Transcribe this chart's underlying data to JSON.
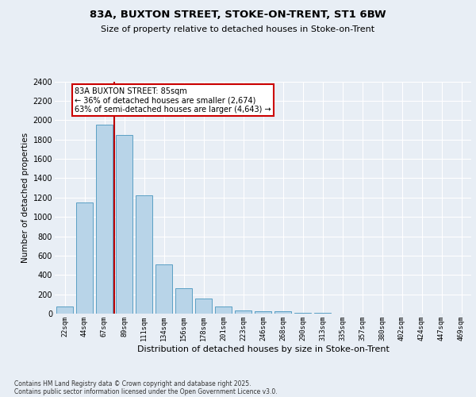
{
  "title1": "83A, BUXTON STREET, STOKE-ON-TRENT, ST1 6BW",
  "title2": "Size of property relative to detached houses in Stoke-on-Trent",
  "xlabel": "Distribution of detached houses by size in Stoke-on-Trent",
  "ylabel": "Number of detached properties",
  "categories": [
    "22sqm",
    "44sqm",
    "67sqm",
    "89sqm",
    "111sqm",
    "134sqm",
    "156sqm",
    "178sqm",
    "201sqm",
    "223sqm",
    "246sqm",
    "268sqm",
    "290sqm",
    "313sqm",
    "335sqm",
    "357sqm",
    "380sqm",
    "402sqm",
    "424sqm",
    "447sqm",
    "469sqm"
  ],
  "values": [
    75,
    1150,
    1950,
    1850,
    1225,
    510,
    265,
    160,
    75,
    30,
    25,
    25,
    5,
    5,
    2,
    1,
    1,
    1,
    1,
    1,
    0
  ],
  "bar_color": "#b8d4e8",
  "bar_edge_color": "#5a9fc4",
  "red_line_x": 2.5,
  "annotation_title": "83A BUXTON STREET: 85sqm",
  "annotation_line1": "← 36% of detached houses are smaller (2,674)",
  "annotation_line2": "63% of semi-detached houses are larger (4,643) →",
  "annotation_box_color": "#ffffff",
  "annotation_box_edge_color": "#cc0000",
  "footer_line1": "Contains HM Land Registry data © Crown copyright and database right 2025.",
  "footer_line2": "Contains public sector information licensed under the Open Government Licence v3.0.",
  "ylim": [
    0,
    2400
  ],
  "yticks": [
    0,
    200,
    400,
    600,
    800,
    1000,
    1200,
    1400,
    1600,
    1800,
    2000,
    2200,
    2400
  ],
  "bg_color": "#e8eef5",
  "fig_bg_color": "#e8eef5",
  "grid_color": "#ffffff"
}
